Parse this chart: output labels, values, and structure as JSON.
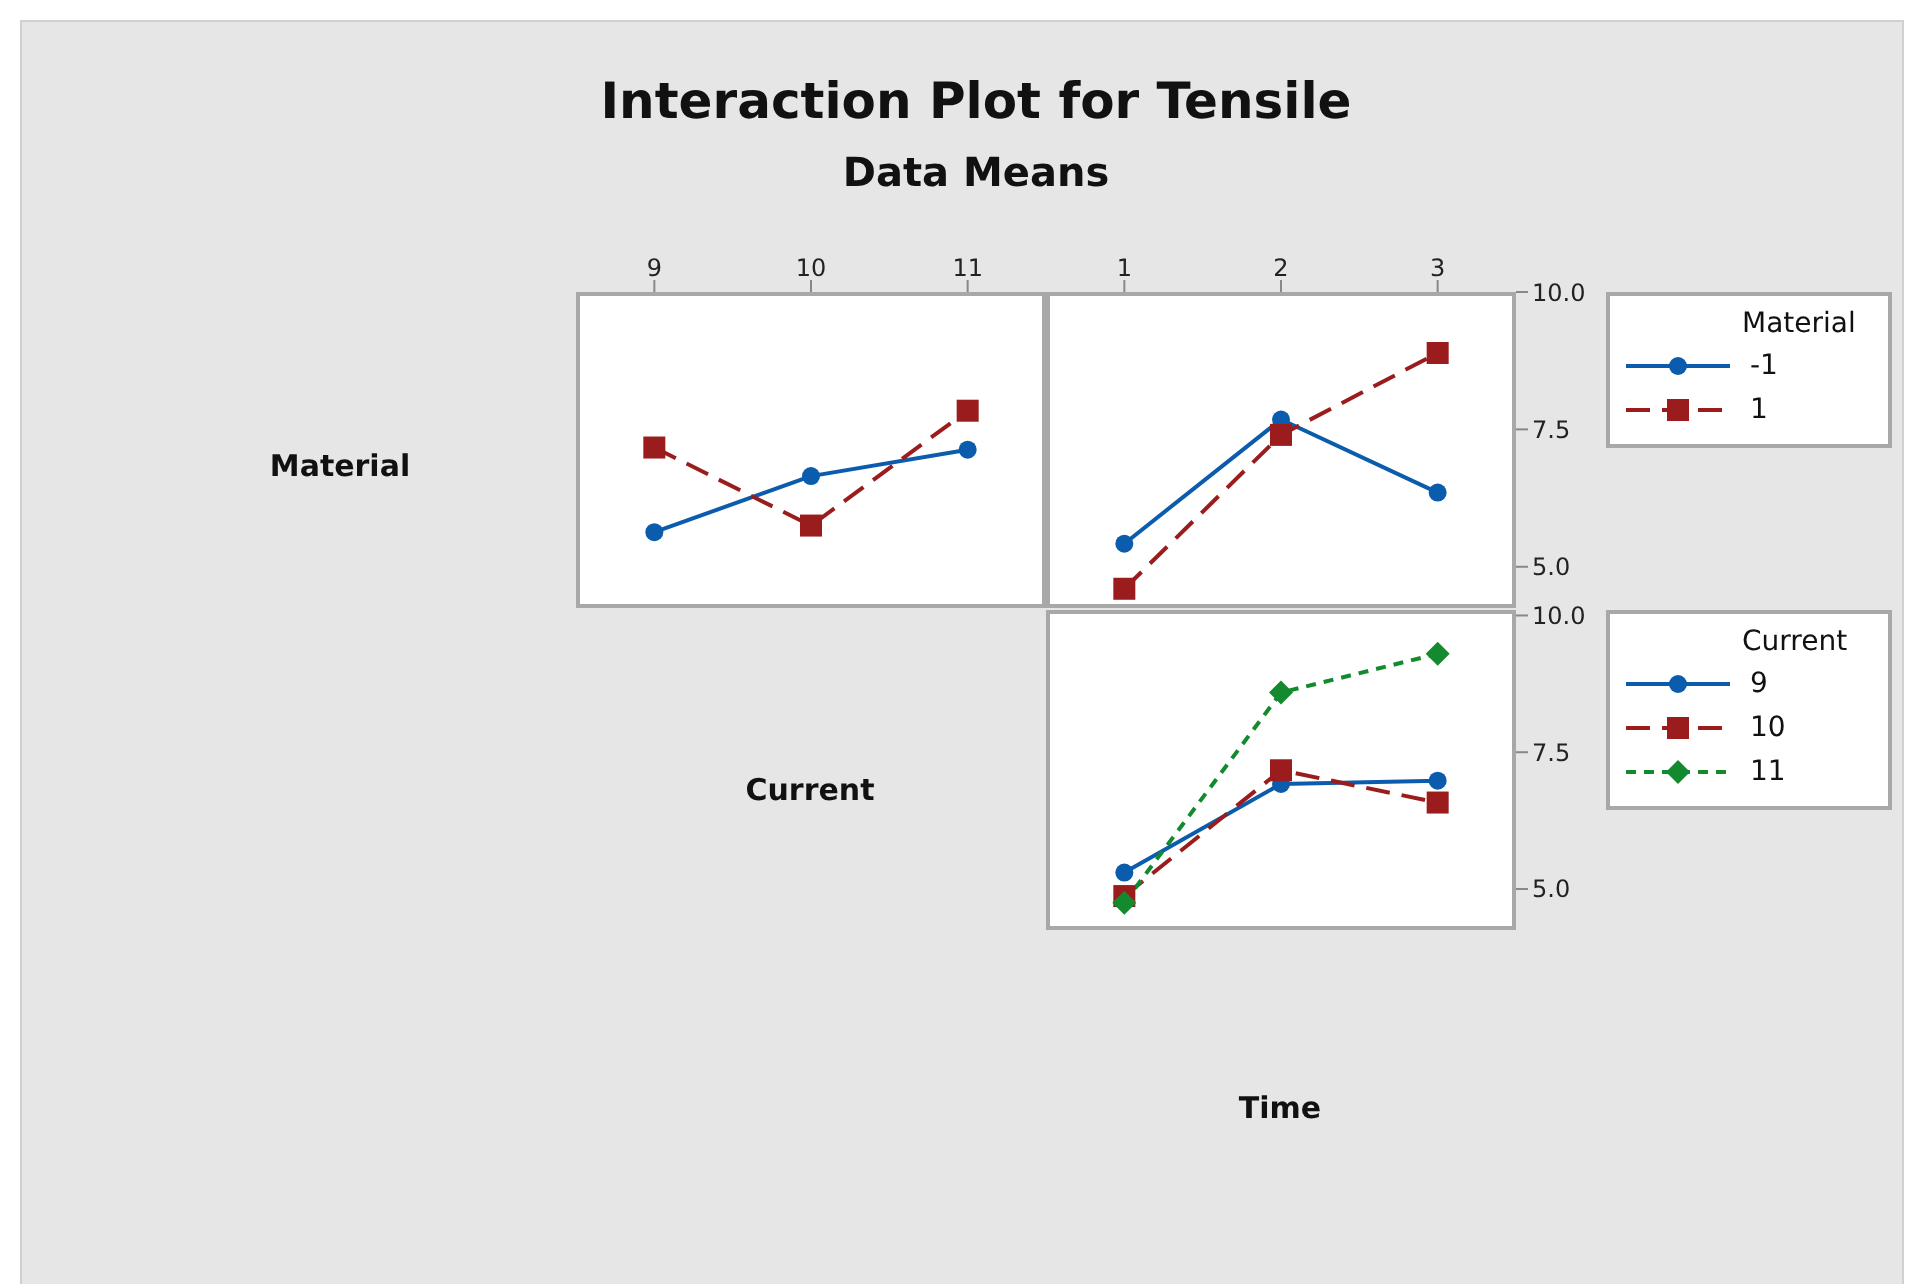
{
  "chart_data": [
    {
      "type": "line",
      "title": "Interaction Plot for Tensile",
      "subtitle": "Data Means",
      "ylabel": "Material",
      "xlabel": "Current",
      "x": [
        9,
        10,
        11
      ],
      "xlim": [
        8.5,
        11.5
      ],
      "xticks": [
        9,
        10,
        11
      ],
      "ylim": [
        4.25,
        10
      ],
      "tick_labels": "x",
      "grid": false,
      "legend": false,
      "series": [
        {
          "color": "#0b5cad",
          "marker": "circle",
          "line_style": "solid",
          "values": [
            5.63,
            6.65,
            7.13
          ]
        },
        {
          "color": "#9b1c1c",
          "marker": "square",
          "line_style": "dashed",
          "values": [
            7.17,
            5.75,
            7.84
          ]
        }
      ]
    },
    {
      "type": "line",
      "legend_title": "Material",
      "x": [
        1,
        2,
        3
      ],
      "xlim": [
        0.5,
        3.5
      ],
      "xticks": [
        1,
        2,
        3
      ],
      "ylim": [
        4.25,
        10
      ],
      "yticks": [
        {
          "value": 5,
          "label": "5.0"
        },
        {
          "value": 7.5,
          "label": "7.5"
        },
        {
          "value": 10,
          "label": "10.0"
        }
      ],
      "grid": false,
      "legend": "right",
      "series": [
        {
          "name": "-1",
          "color": "#0b5cad",
          "marker": "circle",
          "line_style": "solid",
          "values": [
            5.42,
            7.68,
            6.35
          ]
        },
        {
          "name": "1",
          "color": "#9b1c1c",
          "marker": "square",
          "line_style": "dashed",
          "values": [
            4.6,
            7.4,
            8.89
          ]
        }
      ]
    },
    {
      "type": "line",
      "xlabel": "Time",
      "legend_title": "Current",
      "x": [
        1,
        2,
        3
      ],
      "xlim": [
        0.5,
        3.5
      ],
      "xticks": [
        1,
        2,
        3
      ],
      "ylim": [
        4.25,
        10.1
      ],
      "yticks": [
        {
          "value": 5,
          "label": "5.0"
        },
        {
          "value": 7.5,
          "label": "7.5"
        },
        {
          "value": 10,
          "label": "10.0"
        }
      ],
      "tick_labels": "y",
      "grid": false,
      "legend": "right",
      "series": [
        {
          "name": "9",
          "color": "#0b5cad",
          "marker": "circle",
          "line_style": "solid",
          "values": [
            5.3,
            6.92,
            6.98
          ]
        },
        {
          "name": "10",
          "color": "#9b1c1c",
          "marker": "square",
          "line_style": "dashed",
          "values": [
            4.87,
            7.17,
            6.58
          ]
        },
        {
          "name": "11",
          "color": "#138a2e",
          "marker": "diamond",
          "line_style": "dotted",
          "values": [
            4.75,
            8.59,
            9.3
          ]
        }
      ]
    }
  ]
}
